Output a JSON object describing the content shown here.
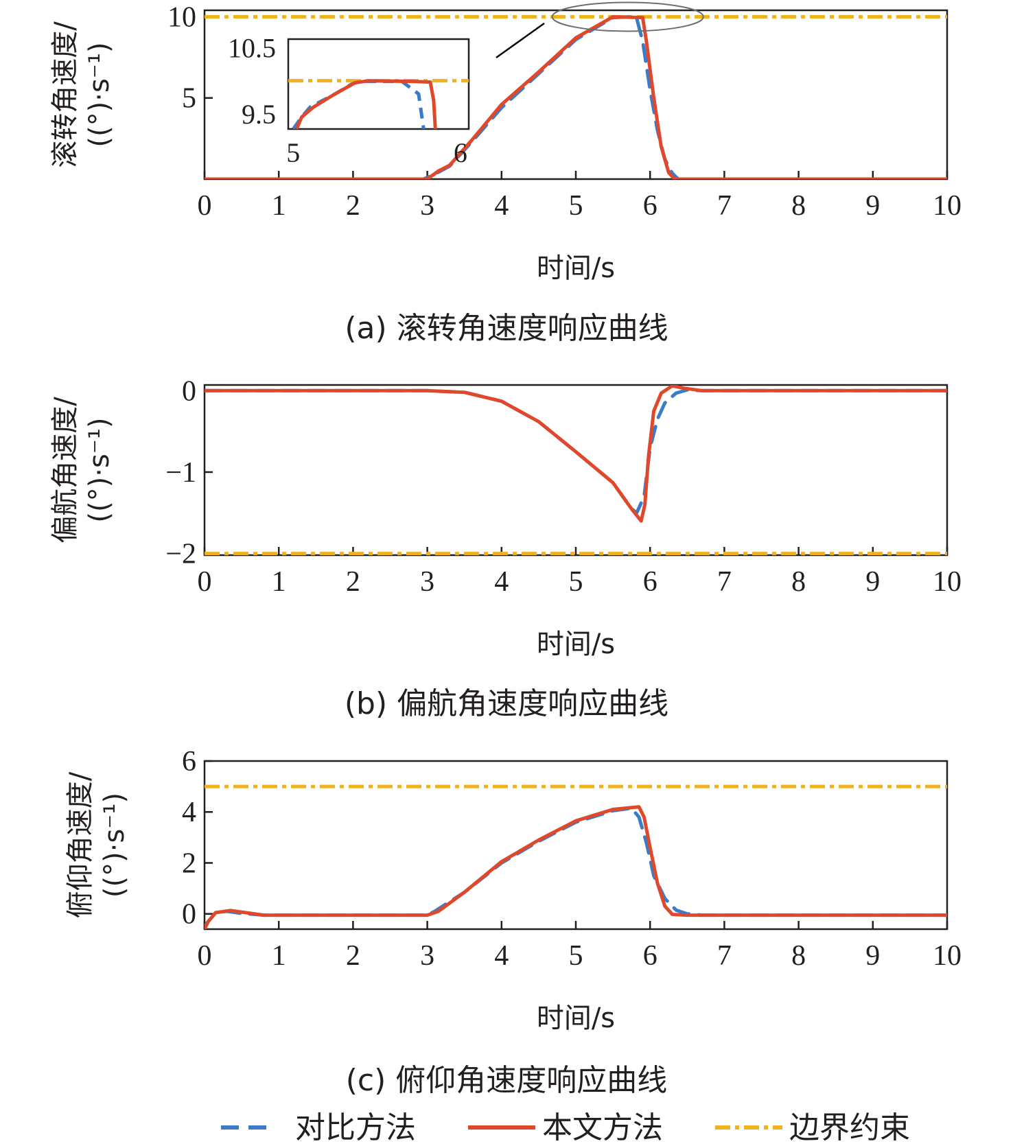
{
  "colors": {
    "compare": "#3b7cc9",
    "proposed": "#e0482c",
    "boundary": "#f1b21d",
    "axis": "#231f20"
  },
  "legend": [
    {
      "key": "compare",
      "label": "对比方法",
      "style": "dashed"
    },
    {
      "key": "proposed",
      "label": "本文方法",
      "style": "solid"
    },
    {
      "key": "boundary",
      "label": "边界约束",
      "style": "dashdot"
    }
  ],
  "chart_data": [
    {
      "type": "line",
      "caption": "(a) 滚转角速度响应曲线",
      "xlabel": "时间/s",
      "ylabel_lines": [
        "滚转角速度/",
        "((°)·s⁻¹)"
      ],
      "xlim": [
        0,
        10
      ],
      "ylim": [
        0,
        10.4
      ],
      "x_ticks": [
        "0",
        "1",
        "2",
        "3",
        "4",
        "5",
        "6",
        "7",
        "8",
        "9",
        "10"
      ],
      "y_ticks": [
        {
          "value": 5,
          "label": "5"
        },
        {
          "value": 10,
          "label": "10"
        }
      ],
      "boundary": 10,
      "series": [
        {
          "key": "compare",
          "points": [
            [
              0,
              0
            ],
            [
              2.95,
              0
            ],
            [
              3.1,
              0.3
            ],
            [
              3.3,
              0.8
            ],
            [
              3.6,
              2.3
            ],
            [
              4,
              4.4
            ],
            [
              4.5,
              6.5
            ],
            [
              5,
              8.6
            ],
            [
              5.5,
              9.95
            ],
            [
              5.75,
              10
            ],
            [
              5.82,
              9.9
            ],
            [
              5.9,
              8.5
            ],
            [
              6,
              5.5
            ],
            [
              6.1,
              3
            ],
            [
              6.2,
              1.2
            ],
            [
              6.3,
              0.35
            ],
            [
              6.38,
              0
            ],
            [
              10,
              0
            ]
          ]
        },
        {
          "key": "proposed",
          "points": [
            [
              0,
              0
            ],
            [
              3,
              0
            ],
            [
              3.15,
              0.5
            ],
            [
              3.3,
              0.85
            ],
            [
              3.6,
              2.4
            ],
            [
              4,
              4.6
            ],
            [
              4.5,
              6.6
            ],
            [
              5,
              8.7
            ],
            [
              5.5,
              10
            ],
            [
              5.9,
              9.95
            ],
            [
              5.95,
              8.5
            ],
            [
              6.05,
              5
            ],
            [
              6.15,
              2
            ],
            [
              6.25,
              0.4
            ],
            [
              6.33,
              0
            ],
            [
              10,
              0
            ]
          ]
        }
      ],
      "inset": {
        "xlim": [
          4.97,
          6.05
        ],
        "ylim": [
          9.27,
          10.63
        ],
        "y_tick_labels": [
          {
            "value": 10.5,
            "label": "10.5"
          },
          {
            "value": 9.5,
            "label": "9.5"
          }
        ],
        "x_tick_labels": [
          {
            "value": 5,
            "label": "5"
          },
          {
            "value": 6,
            "label": "6"
          }
        ],
        "boundary": 10,
        "series": [
          {
            "key": "compare",
            "points": [
              [
                5,
                9.27
              ],
              [
                5.05,
                9.45
              ],
              [
                5.1,
                9.6
              ],
              [
                5.25,
                9.8
              ],
              [
                5.35,
                9.95
              ],
              [
                5.4,
                9.99
              ],
              [
                5.65,
                9.99
              ],
              [
                5.75,
                9.8
              ],
              [
                5.78,
                9.27
              ]
            ]
          },
          {
            "key": "proposed",
            "points": [
              [
                5.02,
                9.27
              ],
              [
                5.05,
                9.45
              ],
              [
                5.12,
                9.6
              ],
              [
                5.25,
                9.8
              ],
              [
                5.37,
                9.97
              ],
              [
                5.45,
                10
              ],
              [
                5.72,
                9.99
              ],
              [
                5.82,
                9.98
              ],
              [
                5.84,
                9.7
              ],
              [
                5.85,
                9.27
              ]
            ]
          }
        ]
      }
    },
    {
      "type": "line",
      "caption": "(b) 偏航角速度响应曲线",
      "xlabel": "时间/s",
      "ylabel_lines": [
        "偏航角速度/",
        "((°)·s⁻¹)"
      ],
      "xlim": [
        0,
        10
      ],
      "ylim": [
        -2.02,
        0.07
      ],
      "x_ticks": [
        "0",
        "1",
        "2",
        "3",
        "4",
        "5",
        "6",
        "7",
        "8",
        "9",
        "10"
      ],
      "y_ticks": [
        {
          "value": 0,
          "label": "0"
        },
        {
          "value": -1,
          "label": "−1"
        },
        {
          "value": -2,
          "label": "−2"
        }
      ],
      "boundary": -2,
      "series": [
        {
          "key": "compare",
          "points": [
            [
              0,
              0
            ],
            [
              3,
              0
            ],
            [
              3.5,
              -0.02
            ],
            [
              4,
              -0.13
            ],
            [
              4.5,
              -0.38
            ],
            [
              5,
              -0.75
            ],
            [
              5.5,
              -1.13
            ],
            [
              5.75,
              -1.45
            ],
            [
              5.82,
              -1.5
            ],
            [
              5.92,
              -1.3
            ],
            [
              6,
              -0.7
            ],
            [
              6.1,
              -0.35
            ],
            [
              6.2,
              -0.15
            ],
            [
              6.35,
              -0.03
            ],
            [
              6.5,
              0.01
            ],
            [
              6.7,
              0
            ],
            [
              10,
              0
            ]
          ]
        },
        {
          "key": "proposed",
          "points": [
            [
              0,
              0
            ],
            [
              3,
              0
            ],
            [
              3.5,
              -0.02
            ],
            [
              4,
              -0.13
            ],
            [
              4.5,
              -0.38
            ],
            [
              5,
              -0.75
            ],
            [
              5.5,
              -1.13
            ],
            [
              5.75,
              -1.45
            ],
            [
              5.88,
              -1.6
            ],
            [
              5.93,
              -1.4
            ],
            [
              5.98,
              -0.8
            ],
            [
              6.05,
              -0.25
            ],
            [
              6.15,
              -0.03
            ],
            [
              6.3,
              0.06
            ],
            [
              6.45,
              0.03
            ],
            [
              6.7,
              0
            ],
            [
              10,
              0
            ]
          ]
        }
      ]
    },
    {
      "type": "line",
      "caption": "(c) 俯仰角速度响应曲线",
      "xlabel": "时间/s",
      "ylabel_lines": [
        "俯仰角速度/",
        "((°)·s⁻¹)"
      ],
      "xlim": [
        0,
        10
      ],
      "ylim": [
        -0.6,
        6
      ],
      "x_ticks": [
        "0",
        "1",
        "2",
        "3",
        "4",
        "5",
        "6",
        "7",
        "8",
        "9",
        "10"
      ],
      "y_ticks": [
        {
          "value": 0,
          "label": "0"
        },
        {
          "value": 2,
          "label": "2"
        },
        {
          "value": 4,
          "label": "4"
        },
        {
          "value": 6,
          "label": "6"
        }
      ],
      "boundary": 5,
      "series": [
        {
          "key": "compare",
          "points": [
            [
              0,
              -0.5
            ],
            [
              0.05,
              -0.3
            ],
            [
              0.15,
              0.05
            ],
            [
              0.3,
              0.1
            ],
            [
              0.5,
              0.02
            ],
            [
              0.8,
              -0.05
            ],
            [
              1,
              -0.05
            ],
            [
              3,
              -0.05
            ],
            [
              3.1,
              0.1
            ],
            [
              3.5,
              0.85
            ],
            [
              4,
              2
            ],
            [
              4.5,
              2.85
            ],
            [
              5,
              3.6
            ],
            [
              5.5,
              4.05
            ],
            [
              5.75,
              4.15
            ],
            [
              5.85,
              3.8
            ],
            [
              5.95,
              2.8
            ],
            [
              6.05,
              1.5
            ],
            [
              6.2,
              0.6
            ],
            [
              6.35,
              0.15
            ],
            [
              6.5,
              0
            ],
            [
              6.7,
              -0.05
            ],
            [
              10,
              -0.05
            ]
          ]
        },
        {
          "key": "proposed",
          "points": [
            [
              0,
              -0.6
            ],
            [
              0.05,
              -0.3
            ],
            [
              0.15,
              0.05
            ],
            [
              0.35,
              0.13
            ],
            [
              0.55,
              0.05
            ],
            [
              0.8,
              -0.05
            ],
            [
              1,
              -0.05
            ],
            [
              3,
              -0.05
            ],
            [
              3.15,
              0.1
            ],
            [
              3.5,
              0.85
            ],
            [
              4,
              2.05
            ],
            [
              4.5,
              2.9
            ],
            [
              5,
              3.65
            ],
            [
              5.5,
              4.1
            ],
            [
              5.85,
              4.2
            ],
            [
              5.92,
              3.8
            ],
            [
              6,
              2.6
            ],
            [
              6.1,
              1.2
            ],
            [
              6.2,
              0.3
            ],
            [
              6.3,
              -0.02
            ],
            [
              6.5,
              -0.05
            ],
            [
              10,
              -0.05
            ]
          ]
        }
      ]
    }
  ]
}
